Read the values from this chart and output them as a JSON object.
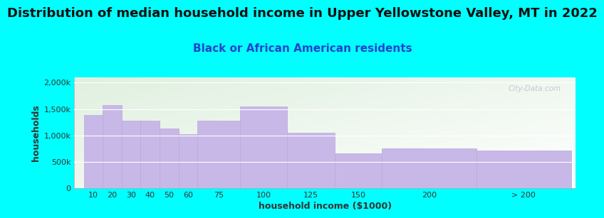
{
  "title": "Distribution of median household income in Upper Yellowstone Valley, MT in 2022",
  "subtitle": "Black or African American residents",
  "xlabel": "household income ($1000)",
  "ylabel": "households",
  "bar_labels": [
    "10",
    "20",
    "30",
    "40",
    "50",
    "60",
    "75",
    "100",
    "125",
    "150",
    "200",
    "> 200"
  ],
  "bar_values": [
    1380000,
    1570000,
    1275000,
    1285000,
    1135000,
    1020000,
    1285000,
    1545000,
    1045000,
    660000,
    755000,
    710000
  ],
  "bar_color": "#c8b8e8",
  "bar_edgecolor": "#b8a8d8",
  "background_color": "#00ffff",
  "plot_bg_top_left": "#e0f0e0",
  "plot_bg_bottom_right": "#f8f8ff",
  "title_fontsize": 13,
  "subtitle_fontsize": 11,
  "subtitle_color": "#2244cc",
  "title_color": "#111111",
  "ytick_labels": [
    "0",
    "500k",
    "1,000k",
    "1,500k",
    "2,000k"
  ],
  "ytick_values": [
    0,
    500000,
    1000000,
    1500000,
    2000000
  ],
  "ylim": [
    0,
    2100000
  ],
  "watermark": "City-Data.com",
  "bar_left_edges": [
    5,
    15,
    25,
    35,
    45,
    55,
    65,
    87.5,
    112.5,
    137.5,
    162.5,
    212.5
  ],
  "bar_actual_widths": [
    10,
    10,
    10,
    10,
    10,
    10,
    22.5,
    25,
    25,
    25,
    50,
    50
  ],
  "xlim": [
    0,
    265
  ]
}
